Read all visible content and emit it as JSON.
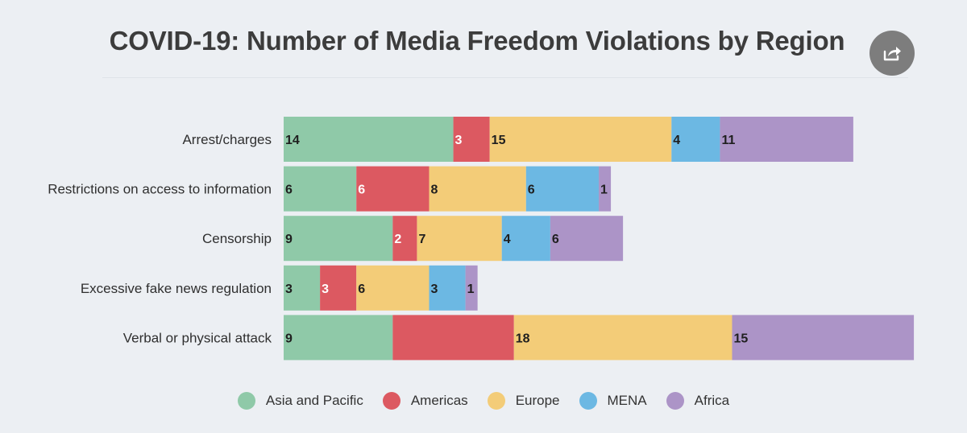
{
  "chart_data": {
    "type": "bar",
    "orientation": "horizontal",
    "stacked": true,
    "title": "COVID-19: Number of Media Freedom Violations by Region",
    "categories": [
      "Arrest/charges",
      "Restrictions on access to information",
      "Censorship",
      "Excessive fake news regulation",
      "Verbal or physical attack"
    ],
    "series": [
      {
        "name": "Asia and Pacific",
        "color": "#8fc9a8",
        "label_color": "#1f1f1f",
        "values": [
          14,
          6,
          9,
          3,
          9
        ]
      },
      {
        "name": "Americas",
        "color": "#dc5961",
        "label_color": "#ffffff",
        "values": [
          3,
          6,
          2,
          3,
          10
        ]
      },
      {
        "name": "Europe",
        "color": "#f3cc78",
        "label_color": "#1f1f1f",
        "values": [
          15,
          8,
          7,
          6,
          18
        ]
      },
      {
        "name": "MENA",
        "color": "#6cb8e3",
        "label_color": "#1f1f1f",
        "values": [
          4,
          6,
          4,
          3,
          0
        ]
      },
      {
        "name": "Africa",
        "color": "#ac94c7",
        "label_color": "#1f1f1f",
        "values": [
          11,
          1,
          6,
          1,
          15
        ]
      }
    ],
    "hidden_labels": [
      [
        1,
        4
      ]
    ],
    "xlim": [
      0,
      52
    ],
    "grid": false,
    "legend_position": "bottom"
  },
  "share_icon": "share-icon"
}
